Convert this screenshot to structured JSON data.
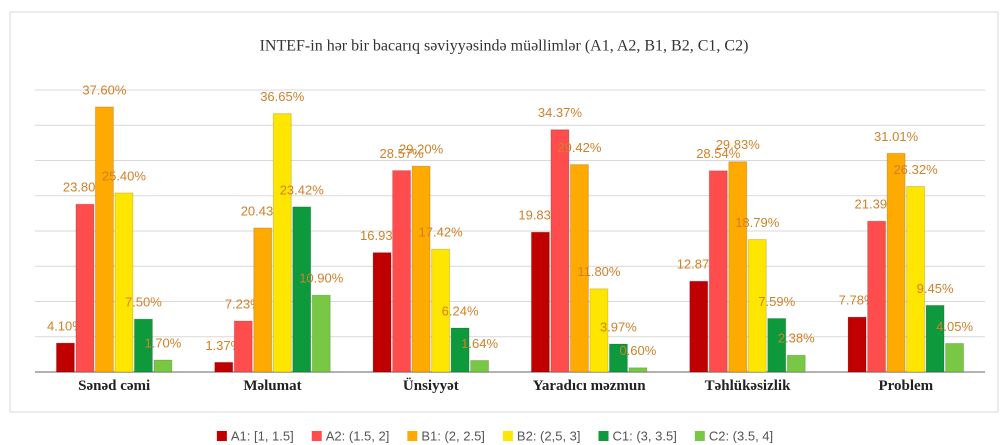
{
  "chart_data": {
    "type": "bar",
    "title": "INTEF-in hər bir bacarıq səviyyəsində müəllimlər (A1, A2, B1, B2, C1, C2)",
    "categories": [
      "Sənəd cəmi",
      "Məlumat",
      "Ünsiyyət",
      "Yaradıcı məzmun",
      "Təhlükəsizlik",
      "Problem"
    ],
    "series": [
      {
        "name": "A1: [1, 1.5]",
        "color": "#c00000",
        "values": [
          4.1,
          1.37,
          16.93,
          19.83,
          12.87,
          7.78
        ],
        "value_labels": [
          "4.10%",
          "1.37%",
          "16.93%",
          "19.83%",
          "12.87%",
          "7.78%"
        ]
      },
      {
        "name": "A2: (1.5, 2]",
        "color": "#ff4d4d",
        "values": [
          23.8,
          7.23,
          28.57,
          34.37,
          28.54,
          21.39
        ],
        "value_labels": [
          "23.80%",
          "7.23%",
          "28.57%",
          "34.37%",
          "28.54%",
          "21.39%"
        ]
      },
      {
        "name": "B1: (2, 2.5]",
        "color": "#ffaa00",
        "values": [
          37.6,
          20.43,
          29.2,
          29.42,
          29.83,
          31.01
        ],
        "value_labels": [
          "37.60%",
          "20.43%",
          "29.20%",
          "29.42%",
          "29.83%",
          "31.01%"
        ]
      },
      {
        "name": "B2: (2,5, 3]",
        "color": "#ffe600",
        "values": [
          25.4,
          36.65,
          17.42,
          11.8,
          18.79,
          26.32
        ],
        "value_labels": [
          "25.40%",
          "36.65%",
          "17.42%",
          "11.80%",
          "18.79%",
          "26.32%"
        ]
      },
      {
        "name": "C1: (3, 3.5]",
        "color": "#0e9a3c",
        "values": [
          7.5,
          23.42,
          6.24,
          3.97,
          7.59,
          9.45
        ],
        "value_labels": [
          "7.50%",
          "23.42%",
          "6.24%",
          "3.97%",
          "7.59%",
          "9.45%"
        ]
      },
      {
        "name": "C2: (3.5, 4]",
        "color": "#78c846",
        "values": [
          1.7,
          10.9,
          1.64,
          0.6,
          2.38,
          4.05
        ],
        "value_labels": [
          "1.70%",
          "10.90%",
          "1.64%",
          "0.60%",
          "2.38%",
          "4.05%"
        ]
      }
    ],
    "ylim": [
      0,
      40
    ],
    "yticks": [
      0,
      5,
      10,
      15,
      20,
      25,
      30,
      35,
      40
    ],
    "grid": true,
    "legend": "bottom"
  }
}
